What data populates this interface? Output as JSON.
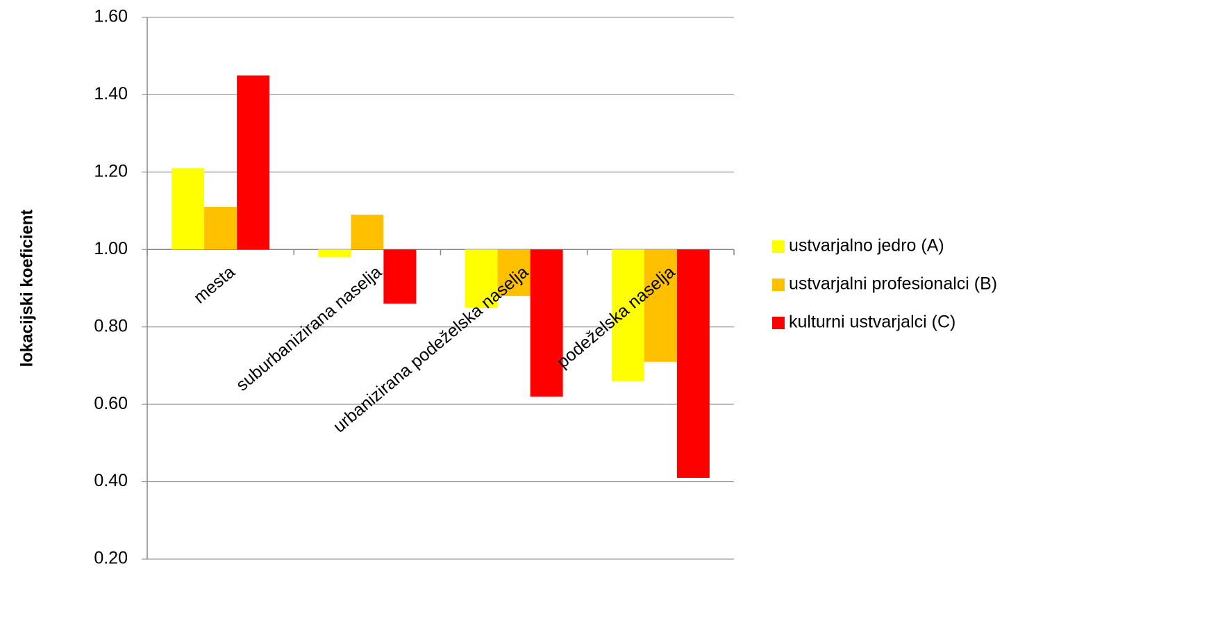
{
  "chart_data": {
    "type": "bar",
    "y_label": "lokacijski koeficient",
    "categories": [
      "mesta",
      "suburbanizirana naselja",
      "urbanizirana podeželska naselja",
      "podeželska naselja"
    ],
    "series": [
      {
        "name": "ustvarjalno jedro (A)",
        "color": "#ffff00",
        "values": [
          1.21,
          0.98,
          0.85,
          0.66
        ]
      },
      {
        "name": "ustvarjalni profesionalci (B)",
        "color": "#ffc000",
        "values": [
          1.11,
          1.09,
          0.88,
          0.71
        ]
      },
      {
        "name": "kulturni ustvarjalci (C)",
        "color": "#ff0000",
        "values": [
          1.45,
          0.86,
          0.62,
          0.41
        ]
      }
    ],
    "baseline": 1,
    "ylim": [
      0.2,
      1.6
    ],
    "yticks": [
      {
        "value": 0.2,
        "label": "0.20"
      },
      {
        "value": 0.4,
        "label": "0.40"
      },
      {
        "value": 0.6,
        "label": "0.60"
      },
      {
        "value": 0.8,
        "label": "0.80"
      },
      {
        "value": 1,
        "label": "1.00"
      },
      {
        "value": 1.2,
        "label": "1.20"
      },
      {
        "value": 1.4,
        "label": "1.40"
      },
      {
        "value": 1.6,
        "label": "1.60"
      }
    ],
    "grid": true,
    "legend": "right"
  }
}
